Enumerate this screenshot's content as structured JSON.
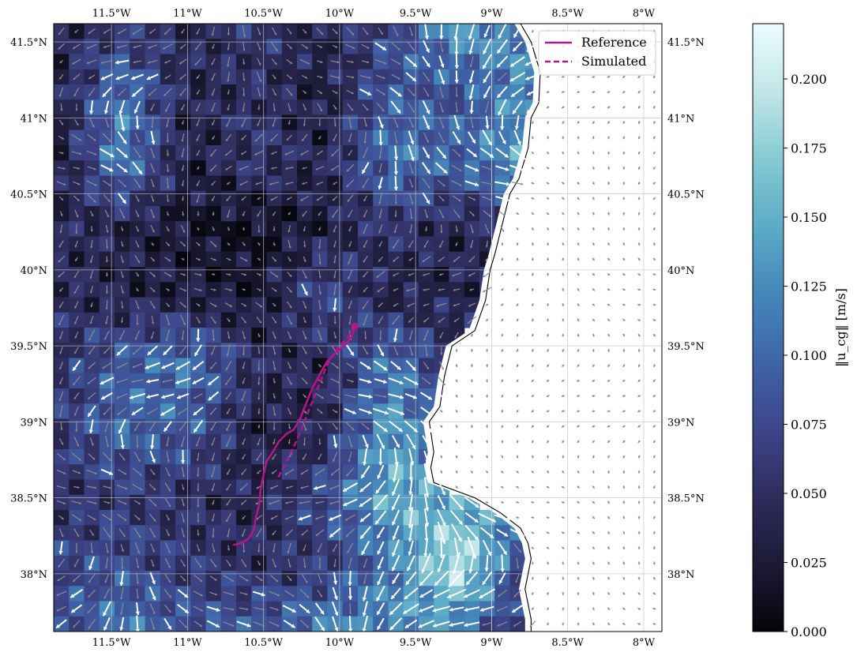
{
  "chart_data": [
    {
      "type": "heatmap",
      "subtype": "quiver-on-raster-map",
      "title": "",
      "projection": "plate carree",
      "lon_range": [
        -11.88,
        -7.88
      ],
      "lat_range": [
        37.62,
        41.62
      ],
      "grid": true,
      "x_ticks": [
        {
          "value": -11.5,
          "label": "11.5°W"
        },
        {
          "value": -11.0,
          "label": "11°W"
        },
        {
          "value": -10.5,
          "label": "10.5°W"
        },
        {
          "value": -10.0,
          "label": "10°W"
        },
        {
          "value": -9.5,
          "label": "9.5°W"
        },
        {
          "value": -9.0,
          "label": "9°W"
        },
        {
          "value": -8.5,
          "label": "8.5°W"
        },
        {
          "value": -8.0,
          "label": "8°W"
        }
      ],
      "y_ticks": [
        {
          "value": 41.5,
          "label": "41.5°N"
        },
        {
          "value": 41.0,
          "label": "41°N"
        },
        {
          "value": 40.5,
          "label": "40.5°N"
        },
        {
          "value": 40.0,
          "label": "40°N"
        },
        {
          "value": 39.5,
          "label": "39.5°N"
        },
        {
          "value": 39.0,
          "label": "39°N"
        },
        {
          "value": 38.5,
          "label": "38.5°N"
        },
        {
          "value": 38.0,
          "label": "38°N"
        }
      ],
      "legend": {
        "placement": "upper-right",
        "entries": [
          {
            "label": "Reference",
            "style": "solid",
            "color": "#b5178a"
          },
          {
            "label": "Simulated",
            "style": "dashed",
            "color": "#b5178a"
          }
        ]
      },
      "series": [
        {
          "name": "Reference",
          "style": "solid",
          "color": "#b5178a",
          "lon": [
            -9.9,
            -9.92,
            -9.97,
            -10.02,
            -10.08,
            -10.12,
            -10.18,
            -10.22,
            -10.26,
            -10.3,
            -10.35,
            -10.4,
            -10.44,
            -10.48,
            -10.5,
            -10.52,
            -10.53,
            -10.55,
            -10.56,
            -10.57,
            -10.58,
            -10.6,
            -10.65,
            -10.7
          ],
          "lat": [
            39.63,
            39.56,
            39.5,
            39.46,
            39.4,
            39.33,
            39.22,
            39.12,
            39.02,
            38.95,
            38.92,
            38.87,
            38.8,
            38.74,
            38.65,
            38.55,
            38.45,
            38.37,
            38.31,
            38.28,
            38.26,
            38.23,
            38.2,
            38.19
          ]
        },
        {
          "name": "Simulated",
          "style": "dashed",
          "color": "#b5178a",
          "lon": [
            -9.9,
            -9.95,
            -10.02,
            -10.08,
            -10.12,
            -10.16,
            -10.2,
            -10.24,
            -10.28,
            -10.32,
            -10.36,
            -10.41
          ],
          "lat": [
            39.63,
            39.55,
            39.48,
            39.38,
            39.28,
            39.18,
            39.08,
            38.98,
            38.88,
            38.8,
            38.72,
            38.62
          ]
        }
      ],
      "markers": [
        {
          "lon": -9.9,
          "lat": 39.63,
          "shape": "dot",
          "color": "#b5178a"
        }
      ],
      "speed_field": {
        "grid_spacing_deg": 0.1,
        "note": "10 x 10 sample of the speed raster in m/s, rows north to south, columns west to east; null = no data (white, over land)",
        "rows": [
          [
            0.04,
            0.055,
            0.045,
            0.06,
            0.04,
            0.07,
            0.14,
            0.12,
            0.05,
            null
          ],
          [
            0.03,
            0.11,
            0.04,
            0.05,
            0.03,
            0.09,
            0.08,
            0.13,
            0.06,
            null
          ],
          [
            0.02,
            0.12,
            0.03,
            0.06,
            0.04,
            0.11,
            0.1,
            0.14,
            0.03,
            null
          ],
          [
            0.045,
            0.04,
            0.02,
            0.015,
            0.03,
            0.06,
            0.04,
            0.06,
            0.04,
            null
          ],
          [
            0.05,
            0.035,
            0.03,
            0.02,
            0.08,
            0.03,
            0.04,
            0.05,
            0.06,
            null
          ],
          [
            0.05,
            0.09,
            0.11,
            0.05,
            0.04,
            0.11,
            0.05,
            0.04,
            null,
            null
          ],
          [
            0.06,
            0.1,
            0.09,
            0.03,
            0.04,
            0.14,
            0.07,
            0.04,
            null,
            null
          ],
          [
            0.05,
            0.06,
            0.05,
            0.04,
            0.08,
            0.15,
            0.14,
            null,
            null,
            null
          ],
          [
            0.07,
            0.08,
            0.06,
            0.05,
            0.06,
            0.11,
            0.2,
            0.06,
            0.02,
            null
          ],
          [
            0.08,
            0.11,
            0.09,
            0.09,
            0.12,
            0.13,
            0.11,
            0.05,
            0.03,
            null
          ]
        ]
      },
      "land_mask": {
        "note": "westernmost longitude of land per latitude (coastline)",
        "lat": [
          41.62,
          41.5,
          41.3,
          41.1,
          41.0,
          40.8,
          40.6,
          40.5,
          40.3,
          40.1,
          40.0,
          39.8,
          39.6,
          39.5,
          39.3,
          39.1,
          39.0,
          38.8,
          38.7,
          38.6,
          38.5,
          38.4,
          38.3,
          38.2,
          38.1,
          38.0,
          37.9,
          37.8,
          37.7,
          37.62
        ],
        "coast_lon": [
          -8.85,
          -8.78,
          -8.72,
          -8.73,
          -8.78,
          -8.8,
          -8.86,
          -8.92,
          -8.97,
          -9.02,
          -9.05,
          -9.08,
          -9.15,
          -9.3,
          -9.35,
          -9.38,
          -9.45,
          -9.42,
          -9.44,
          -9.42,
          -9.15,
          -8.98,
          -8.85,
          -8.8,
          -8.78,
          -8.8,
          -8.82,
          -8.8,
          -8.78,
          -8.78
        ]
      }
    },
    {
      "type": "colorbar",
      "label": "‖u_cg‖ [m/s]",
      "colormap": "ice",
      "range": [
        0.0,
        0.22
      ],
      "ticks": [
        {
          "value": 0.0,
          "label": "0.000"
        },
        {
          "value": 0.025,
          "label": "0.025"
        },
        {
          "value": 0.05,
          "label": "0.050"
        },
        {
          "value": 0.075,
          "label": "0.075"
        },
        {
          "value": 0.1,
          "label": "0.100"
        },
        {
          "value": 0.125,
          "label": "0.125"
        },
        {
          "value": 0.15,
          "label": "0.150"
        },
        {
          "value": 0.175,
          "label": "0.175"
        },
        {
          "value": 0.2,
          "label": "0.200"
        }
      ],
      "colors": [
        "#04050a",
        "#1c1a36",
        "#2e2c5c",
        "#3d4589",
        "#3f64a8",
        "#4587b9",
        "#5cabc7",
        "#86cad3",
        "#c2e6e8",
        "#eafcfd"
      ]
    }
  ]
}
